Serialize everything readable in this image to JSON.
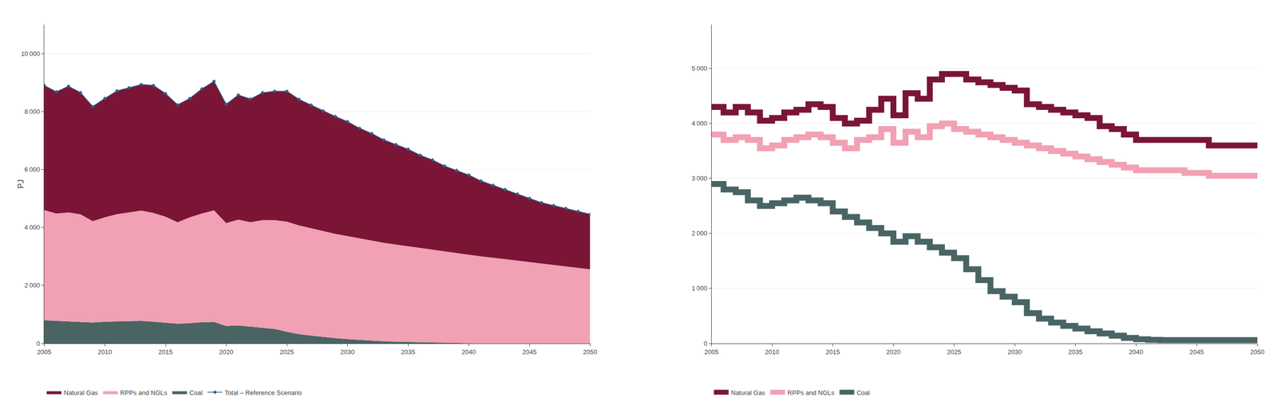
{
  "chart_data": [
    {
      "type": "area",
      "stacked": true,
      "ylabel": "PJ",
      "grid": true,
      "legend": "bottom",
      "x": [
        2005,
        2006,
        2007,
        2008,
        2009,
        2010,
        2011,
        2012,
        2013,
        2014,
        2015,
        2016,
        2017,
        2018,
        2019,
        2020,
        2021,
        2022,
        2023,
        2024,
        2025,
        2026,
        2027,
        2028,
        2029,
        2030,
        2031,
        2032,
        2033,
        2034,
        2035,
        2036,
        2037,
        2038,
        2039,
        2040,
        2041,
        2042,
        2043,
        2044,
        2045,
        2046,
        2047,
        2048,
        2049,
        2050
      ],
      "xlim": [
        2005,
        2050
      ],
      "xticks": [
        2005,
        2010,
        2015,
        2020,
        2025,
        2030,
        2035,
        2040,
        2045,
        2050
      ],
      "ylim": [
        0,
        11000
      ],
      "yticks": [
        0,
        {
          "value": 2000,
          "label": "2 000"
        },
        {
          "value": 4000,
          "label": "4 000"
        },
        {
          "value": 6000,
          "label": "6 000"
        },
        {
          "value": 8000,
          "label": "8 000"
        },
        {
          "value": 10000,
          "label": "10 000"
        }
      ],
      "series": [
        {
          "name": "Natural Gas",
          "color": "#7B1535",
          "values": [
            4300,
            4200,
            4350,
            4200,
            3950,
            4100,
            4250,
            4300,
            4350,
            4400,
            4250,
            4050,
            4100,
            4300,
            4450,
            4100,
            4300,
            4250,
            4400,
            4450,
            4500,
            4350,
            4250,
            4150,
            4050,
            3950,
            3800,
            3700,
            3550,
            3450,
            3350,
            3200,
            3100,
            2950,
            2850,
            2750,
            2600,
            2500,
            2400,
            2300,
            2200,
            2100,
            2050,
            2000,
            1950,
            1900
          ]
        },
        {
          "name": "RPPs and NGLs",
          "color": "#F2A0B4",
          "values": [
            3800,
            3700,
            3750,
            3700,
            3500,
            3600,
            3700,
            3750,
            3800,
            3750,
            3650,
            3500,
            3650,
            3750,
            3850,
            3550,
            3650,
            3600,
            3700,
            3750,
            3800,
            3750,
            3700,
            3650,
            3600,
            3550,
            3500,
            3450,
            3400,
            3350,
            3300,
            3250,
            3200,
            3150,
            3100,
            3050,
            3000,
            2950,
            2900,
            2850,
            2800,
            2750,
            2700,
            2650,
            2600,
            2550
          ]
        },
        {
          "name": "Coal",
          "color": "#4A6464",
          "values": [
            800,
            780,
            770,
            750,
            720,
            750,
            760,
            770,
            780,
            750,
            720,
            680,
            700,
            730,
            740,
            600,
            620,
            580,
            550,
            500,
            400,
            320,
            270,
            220,
            180,
            150,
            120,
            90,
            70,
            60,
            50,
            40,
            30,
            20,
            15,
            10,
            5,
            5,
            5,
            5,
            5,
            5,
            5,
            5,
            5,
            5
          ]
        },
        {
          "name": "Total – Reference Scenario",
          "type": "line",
          "marker": "diamond",
          "color": "#2B5F8E",
          "values": [
            8900,
            8680,
            8870,
            8650,
            8170,
            8450,
            8710,
            8820,
            8930,
            8900,
            8620,
            8230,
            8450,
            8780,
            9040,
            8250,
            8570,
            8430,
            8650,
            8700,
            8700,
            8420,
            8220,
            8020,
            7830,
            7650,
            7420,
            7240,
            7020,
            6860,
            6700,
            6490,
            6330,
            6120,
            5965,
            5810,
            5605,
            5455,
            5305,
            5155,
            5005,
            4855,
            4755,
            4655,
            4555,
            4455
          ]
        }
      ]
    },
    {
      "type": "step",
      "grid": true,
      "legend": "bottom",
      "x": [
        2005,
        2006,
        2007,
        2008,
        2009,
        2010,
        2011,
        2012,
        2013,
        2014,
        2015,
        2016,
        2017,
        2018,
        2019,
        2020,
        2021,
        2022,
        2023,
        2024,
        2025,
        2026,
        2027,
        2028,
        2029,
        2030,
        2031,
        2032,
        2033,
        2034,
        2035,
        2036,
        2037,
        2038,
        2039,
        2040,
        2041,
        2042,
        2043,
        2044,
        2045,
        2046,
        2047,
        2048,
        2049,
        2050
      ],
      "xlim": [
        2005,
        2050
      ],
      "xticks": [
        2005,
        2010,
        2015,
        2020,
        2025,
        2030,
        2035,
        2040,
        2045,
        2050
      ],
      "ylim": [
        0,
        5800
      ],
      "yticks": [
        0,
        {
          "value": 1000,
          "label": "1 000"
        },
        {
          "value": 2000,
          "label": "2 000"
        },
        {
          "value": 3000,
          "label": "3 000"
        },
        {
          "value": 4000,
          "label": "4 000"
        },
        {
          "value": 5000,
          "label": "5 000"
        }
      ],
      "series": [
        {
          "name": "Natural Gas",
          "color": "#7B1535",
          "values": [
            4300,
            4200,
            4300,
            4200,
            4050,
            4100,
            4200,
            4250,
            4350,
            4300,
            4100,
            4000,
            4050,
            4250,
            4450,
            4150,
            4550,
            4450,
            4800,
            4900,
            4900,
            4800,
            4750,
            4700,
            4650,
            4600,
            4350,
            4300,
            4250,
            4200,
            4150,
            4100,
            3950,
            3900,
            3800,
            3700,
            3700,
            3700,
            3700,
            3700,
            3700,
            3600,
            3600,
            3600,
            3600,
            3600
          ]
        },
        {
          "name": "RPPs and NGLs",
          "color": "#F2A0B4",
          "values": [
            3800,
            3700,
            3750,
            3700,
            3550,
            3600,
            3700,
            3750,
            3800,
            3750,
            3650,
            3550,
            3700,
            3750,
            3900,
            3650,
            3850,
            3750,
            3950,
            4000,
            3900,
            3850,
            3800,
            3750,
            3700,
            3650,
            3600,
            3550,
            3500,
            3450,
            3400,
            3350,
            3300,
            3250,
            3200,
            3150,
            3150,
            3150,
            3150,
            3100,
            3100,
            3050,
            3050,
            3050,
            3050,
            3050
          ]
        },
        {
          "name": "Coal",
          "color": "#4A6464",
          "values": [
            2900,
            2800,
            2750,
            2600,
            2500,
            2550,
            2600,
            2650,
            2600,
            2550,
            2400,
            2300,
            2200,
            2100,
            2000,
            1850,
            1950,
            1850,
            1750,
            1650,
            1550,
            1350,
            1150,
            950,
            850,
            750,
            550,
            450,
            380,
            320,
            270,
            220,
            180,
            140,
            100,
            75,
            65,
            60,
            60,
            60,
            60,
            60,
            60,
            60,
            60,
            60
          ]
        }
      ]
    }
  ]
}
